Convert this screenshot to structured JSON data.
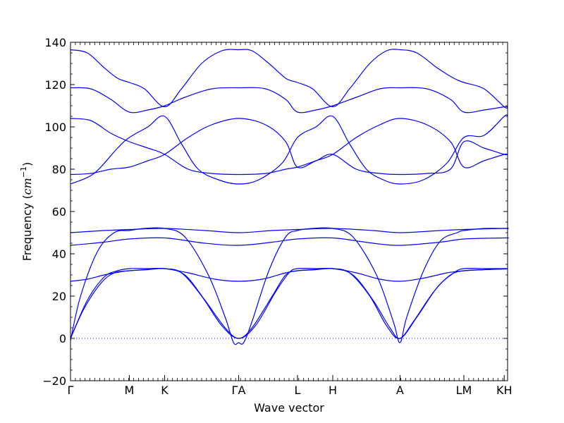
{
  "chart_data": {
    "type": "line",
    "title": "",
    "xlabel": "Wave vector",
    "ylabel_text": "Frequency (",
    "ylabel_unit_base": "cm",
    "ylabel_unit_exp": "−1",
    "ylabel_close": ")",
    "ylim": [
      -20,
      140
    ],
    "yticks": [
      -20,
      0,
      20,
      40,
      60,
      80,
      100,
      120,
      140
    ],
    "ytick_labels": [
      "−20",
      "0",
      "20",
      "40",
      "60",
      "80",
      "100",
      "120",
      "140"
    ],
    "xlim": [
      0,
      13
    ],
    "xticks": [
      {
        "label": "Γ",
        "x": 0
      },
      {
        "label": "M",
        "x": 1.75
      },
      {
        "label": "K",
        "x": 2.8
      },
      {
        "label": "ΓA",
        "x": 5
      },
      {
        "label": "L",
        "x": 6.75
      },
      {
        "label": "H",
        "x": 7.8
      },
      {
        "label": "A",
        "x": 9.8
      },
      {
        "label": "LM",
        "x": 11.7
      },
      {
        "label": "KH",
        "x": 12.9
      }
    ],
    "zero_line": {
      "y": 0,
      "style": "dotted"
    },
    "line_color": "#0000ff",
    "grid": false,
    "series": [
      {
        "x": [
          0,
          0.4,
          0.9,
          1.3,
          1.75,
          2.2,
          2.8,
          3.4,
          4.0,
          4.6,
          5,
          5.4,
          6.0,
          6.4,
          6.75,
          7.2,
          7.8,
          8.4,
          9.0,
          9.5,
          9.8,
          10.2,
          10.8,
          11.3,
          11.7,
          12.3,
          12.9,
          13
        ],
        "y": [
          0,
          14,
          26,
          31,
          32,
          32.5,
          33,
          30,
          18,
          5,
          0,
          5,
          20,
          30,
          32,
          32.5,
          33,
          30,
          18,
          5,
          0,
          8,
          22,
          30,
          32,
          32.5,
          33,
          33
        ]
      },
      {
        "x": [
          0,
          0.5,
          1.0,
          1.4,
          1.75,
          2.3,
          2.8,
          3.3,
          3.9,
          4.5,
          5,
          5.5,
          6.1,
          6.5,
          6.75,
          7.3,
          7.8,
          8.3,
          8.9,
          9.4,
          9.8,
          10.3,
          10.9,
          11.4,
          11.7,
          12.3,
          12.9,
          13
        ],
        "y": [
          0,
          18,
          29,
          32,
          33,
          33,
          33,
          31,
          20,
          6,
          0,
          6,
          22,
          31,
          33,
          33,
          33,
          31,
          20,
          6,
          0,
          10,
          24,
          31,
          33,
          33,
          33,
          33
        ]
      },
      {
        "x": [
          0,
          0.5,
          1.0,
          1.5,
          1.75,
          2.3,
          2.8,
          3.5,
          4.3,
          5,
          5.7,
          6.4,
          6.75,
          7.3,
          7.8,
          8.5,
          9.2,
          9.8,
          10.5,
          11.2,
          11.7,
          12.3,
          12.9,
          13
        ],
        "y": [
          27,
          28,
          30,
          31.5,
          32,
          32.5,
          33,
          31,
          28,
          27,
          28,
          31,
          32,
          32.5,
          33,
          31,
          28,
          27,
          28.5,
          31,
          32,
          32.5,
          32.8,
          32.8
        ]
      },
      {
        "x": [
          0,
          0.3,
          0.8,
          1.3,
          1.75,
          2.2,
          2.8,
          3.4,
          4.1,
          4.6,
          4.85,
          5,
          5.15,
          5.4,
          5.9,
          6.4,
          6.75,
          7.2,
          7.8,
          8.4,
          9.1,
          9.6,
          9.8,
          10.0,
          10.5,
          11.0,
          11.5,
          11.7,
          12.3,
          12.9,
          13
        ],
        "y": [
          -1,
          20,
          41,
          50,
          51,
          52,
          52,
          48,
          30,
          10,
          -2,
          -2,
          -2,
          8,
          32,
          48,
          51,
          52,
          52,
          48,
          30,
          8,
          -2,
          10,
          32,
          46,
          50,
          51,
          52,
          52,
          52
        ]
      },
      {
        "x": [
          0,
          1.0,
          1.75,
          2.8,
          4.0,
          5,
          6.0,
          6.75,
          7.8,
          9.0,
          9.8,
          11.0,
          11.7,
          12.9,
          13
        ],
        "y": [
          44,
          45.5,
          47,
          47.5,
          45,
          44,
          45.5,
          47,
          47.5,
          45,
          44,
          45.5,
          47,
          47.5,
          47.5
        ]
      },
      {
        "x": [
          0,
          1.0,
          1.75,
          2.8,
          4.0,
          5,
          6.0,
          6.75,
          7.8,
          9.0,
          9.8,
          11.0,
          11.7,
          12.9,
          13
        ],
        "y": [
          50,
          51,
          51.5,
          52,
          51,
          50,
          51,
          51.5,
          52,
          51,
          50,
          51,
          51.5,
          52,
          52
        ]
      },
      {
        "x": [
          0,
          0.6,
          1.2,
          1.75,
          2.3,
          2.8,
          3.5,
          4.2,
          5,
          5.8,
          6.4,
          6.75,
          7.3,
          7.8,
          8.5,
          9.2,
          9.8,
          10.6,
          11.3,
          11.7,
          12.3,
          12.9,
          13
        ],
        "y": [
          77.5,
          78,
          80,
          81,
          84,
          87,
          95,
          101,
          104,
          101,
          93,
          81,
          84,
          87,
          95,
          101,
          104,
          101,
          93,
          81,
          84,
          87,
          87
        ]
      },
      {
        "x": [
          0,
          0.6,
          1.2,
          1.75,
          2.3,
          2.8,
          3.5,
          4.2,
          5,
          5.8,
          6.4,
          6.75,
          7.3,
          7.8,
          8.5,
          9.2,
          9.8,
          10.6,
          11.3,
          11.7,
          12.3,
          12.9,
          13
        ],
        "y": [
          104,
          103,
          97,
          93,
          90,
          87,
          80,
          78,
          77.5,
          78,
          80,
          81,
          84,
          87,
          80,
          78,
          77.5,
          78,
          80,
          93,
          90,
          87,
          87
        ]
      },
      {
        "x": [
          0,
          0.7,
          1.4,
          1.75,
          2.3,
          2.8,
          3.3,
          3.8,
          4.4,
          5,
          5.6,
          6.3,
          6.75,
          7.3,
          7.8,
          8.3,
          8.8,
          9.3,
          9.8,
          10.5,
          11.2,
          11.7,
          12.3,
          12.9,
          13
        ],
        "y": [
          73,
          78,
          90,
          95,
          100,
          105,
          92,
          80,
          75,
          73,
          75,
          83,
          95,
          100,
          105,
          92,
          80,
          75,
          73,
          75,
          83,
          95,
          96,
          105,
          105
        ]
      },
      {
        "x": [
          0,
          0.6,
          1.2,
          1.75,
          2.3,
          2.8,
          3.4,
          4.2,
          5,
          5.8,
          6.4,
          6.75,
          7.3,
          7.8,
          8.5,
          9.2,
          9.8,
          10.6,
          11.3,
          11.7,
          12.3,
          12.9,
          13
        ],
        "y": [
          118.5,
          118,
          113,
          107,
          108,
          110,
          114,
          118,
          118.5,
          118,
          113,
          107,
          108,
          110,
          114,
          118,
          118.5,
          118,
          113,
          107,
          108,
          109.5,
          109.5
        ]
      },
      {
        "x": [
          0,
          0.5,
          1.0,
          1.4,
          1.75,
          2.2,
          2.8,
          3.3,
          3.9,
          4.5,
          5,
          5.4,
          5.9,
          6.4,
          6.75,
          7.2,
          7.8,
          8.3,
          8.9,
          9.4,
          9.8,
          10.3,
          10.9,
          11.4,
          11.7,
          12.3,
          12.9,
          13
        ],
        "y": [
          136.5,
          135,
          128,
          123,
          121,
          118,
          109.5,
          118,
          130,
          136,
          136.5,
          136,
          130,
          123,
          121,
          118,
          109.5,
          118,
          130,
          136,
          136.5,
          135,
          128,
          123,
          121,
          118,
          109.5,
          109.5
        ]
      }
    ]
  }
}
